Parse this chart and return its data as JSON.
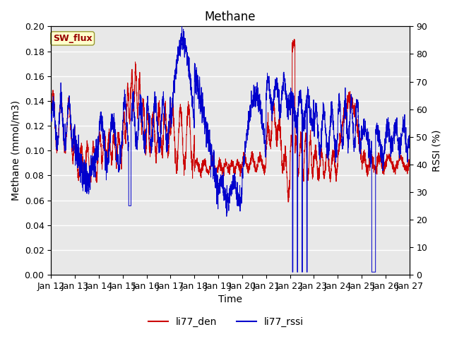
{
  "title": "Methane",
  "xlabel": "Time",
  "ylabel_left": "Methane (mmol/m3)",
  "ylabel_right": "RSSI (%)",
  "ylim_left": [
    0.0,
    0.2
  ],
  "ylim_right": [
    0,
    90
  ],
  "yticks_left": [
    0.0,
    0.02,
    0.04,
    0.06,
    0.08,
    0.1,
    0.12,
    0.14,
    0.16,
    0.18,
    0.2
  ],
  "yticks_right": [
    0,
    10,
    20,
    30,
    40,
    50,
    60,
    70,
    80,
    90
  ],
  "xtick_labels": [
    "Jan 12",
    "Jan 13",
    "Jan 14",
    "Jan 15",
    "Jan 16",
    "Jan 17",
    "Jan 18",
    "Jan 19",
    "Jan 20",
    "Jan 21",
    "Jan 22",
    "Jan 23",
    "Jan 24",
    "Jan 25",
    "Jan 26",
    "Jan 27"
  ],
  "color_den": "#cc0000",
  "color_rssi": "#0000cc",
  "legend_labels": [
    "li77_den",
    "li77_rssi"
  ],
  "sw_flux_box_facecolor": "#ffffcc",
  "sw_flux_box_edgecolor": "#999933",
  "sw_flux_text_color": "#990000",
  "plot_bg_color": "#e8e8e8",
  "fig_bg_color": "#ffffff",
  "grid_color": "#ffffff",
  "title_fontsize": 12,
  "axis_label_fontsize": 10,
  "tick_fontsize": 9,
  "legend_fontsize": 10
}
